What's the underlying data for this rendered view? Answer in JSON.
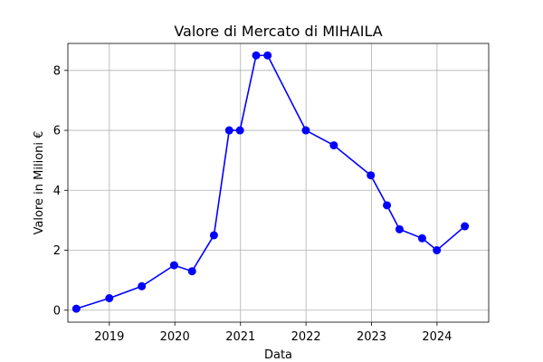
{
  "chart_data": {
    "type": "line",
    "title": "Valore di Mercato di MIHAILA",
    "xlabel": "Data",
    "ylabel": "Valore in Milioni €",
    "x_ticks": [
      "2019",
      "2020",
      "2021",
      "2022",
      "2023",
      "2024"
    ],
    "y_ticks": [
      "0",
      "2",
      "4",
      "6",
      "8"
    ],
    "xlim": [
      "2018-05-15",
      "2024-10-15"
    ],
    "ylim": [
      -0.4,
      8.9
    ],
    "grid": true,
    "series": [
      {
        "color": "#0000ff",
        "points": [
          {
            "x": "2018-07-01",
            "y": 0.05
          },
          {
            "x": "2019-01-01",
            "y": 0.4
          },
          {
            "x": "2019-07-01",
            "y": 0.8
          },
          {
            "x": "2019-12-28",
            "y": 1.5
          },
          {
            "x": "2020-04-06",
            "y": 1.3
          },
          {
            "x": "2020-08-06",
            "y": 2.5
          },
          {
            "x": "2020-10-30",
            "y": 6.0
          },
          {
            "x": "2020-12-29",
            "y": 6.0
          },
          {
            "x": "2021-03-29",
            "y": 8.5
          },
          {
            "x": "2021-06-01",
            "y": 8.5
          },
          {
            "x": "2021-12-31",
            "y": 6.0
          },
          {
            "x": "2022-06-05",
            "y": 5.5
          },
          {
            "x": "2022-12-28",
            "y": 4.5
          },
          {
            "x": "2023-03-28",
            "y": 3.5
          },
          {
            "x": "2023-06-06",
            "y": 2.7
          },
          {
            "x": "2023-10-10",
            "y": 2.4
          },
          {
            "x": "2023-12-31",
            "y": 2.0
          },
          {
            "x": "2024-06-04",
            "y": 2.8
          }
        ]
      }
    ]
  }
}
